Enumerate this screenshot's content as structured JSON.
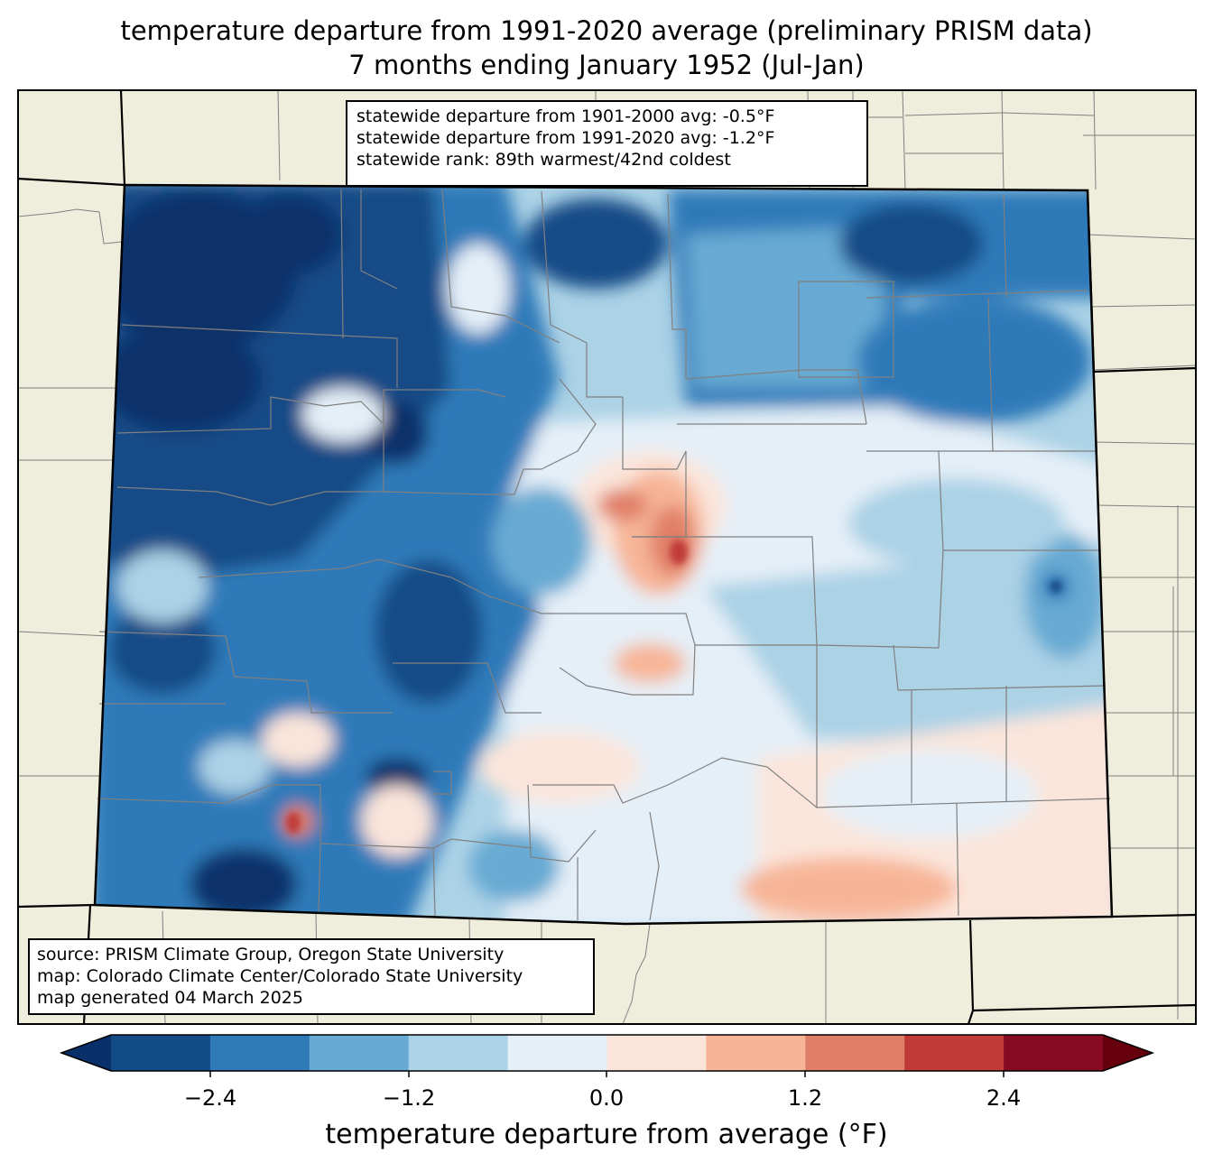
{
  "title": {
    "line1": "temperature departure from 1991-2020 average (preliminary PRISM data)",
    "line2": "7 months ending January 1952 (Jul-Jan)"
  },
  "stats": {
    "line1": "statewide departure from 1901-2000 avg: -0.5°F",
    "line2": "statewide departure from 1991-2020 avg: -1.2°F",
    "line3": "statewide rank: 89th warmest/42nd coldest"
  },
  "credits": {
    "line1": "source: PRISM Climate Group, Oregon State University",
    "line2": "map: Colorado Climate Center/Colorado State University",
    "line3": "map generated 04 March 2025"
  },
  "colorbar": {
    "label": "temperature departure from average (°F)",
    "ticks": [
      "−2.4",
      "−1.2",
      "0.0",
      "1.2",
      "2.4"
    ],
    "bin_colors": [
      "#08306b",
      "#134b87",
      "#2f7ab9",
      "#67aad3",
      "#acd2e6",
      "#e5eff7",
      "#fbe5da",
      "#f7b597",
      "#e07f67",
      "#c03a37",
      "#870b23",
      "#67000d"
    ]
  },
  "colors": {
    "land": "#efeedc",
    "state_border": "#000000",
    "county_border": "#808080"
  }
}
